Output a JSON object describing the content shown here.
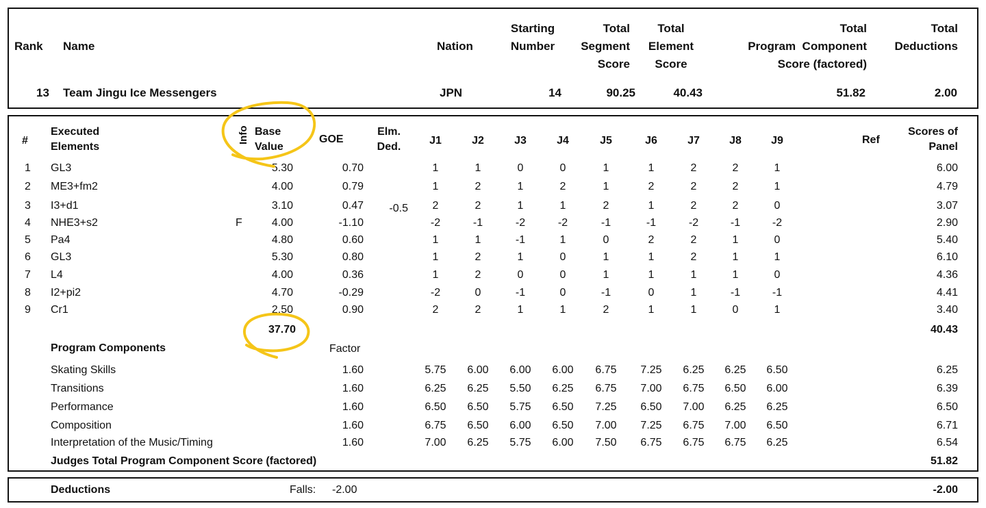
{
  "header": {
    "col_rank": "Rank",
    "col_name": "Name",
    "col_nation": "Nation",
    "col_starting_number": [
      "Starting",
      "Number"
    ],
    "col_total_segment": [
      "Total",
      "Segment",
      "Score"
    ],
    "col_total_element": [
      "Total",
      "Element",
      "Score"
    ],
    "col_total_program_component": [
      "Total",
      "Program  Component",
      "Score (factored)"
    ],
    "col_total_deductions": [
      "Total",
      "Deductions"
    ],
    "skater": {
      "rank": "13",
      "name": "Team Jingu Ice Messengers",
      "nation": "JPN",
      "starting_number": "14",
      "total_segment_score": "90.25",
      "total_element_score": "40.43",
      "total_program_component_score": "51.82",
      "total_deductions": "2.00"
    }
  },
  "elements_table": {
    "headers": {
      "num": "#",
      "executed_elements": [
        "Executed",
        "Elements"
      ],
      "info": "Info",
      "base_value": [
        "Base",
        "Value"
      ],
      "goe": "GOE",
      "elm_ded": [
        "Elm.",
        "Ded."
      ],
      "judges": [
        "J1",
        "J2",
        "J3",
        "J4",
        "J5",
        "J6",
        "J7",
        "J8",
        "J9"
      ],
      "ref": "Ref",
      "scores_of_panel": [
        "Scores of",
        "Panel"
      ]
    },
    "rows": [
      {
        "num": "1",
        "element": "GL3",
        "info": "",
        "base": "5.30",
        "goe": "0.70",
        "ded": "",
        "judges": [
          "1",
          "1",
          "0",
          "0",
          "1",
          "1",
          "2",
          "2",
          "1"
        ],
        "score": "6.00"
      },
      {
        "num": "2",
        "element": "ME3+fm2",
        "info": "",
        "base": "4.00",
        "goe": "0.79",
        "ded": "",
        "judges": [
          "1",
          "2",
          "1",
          "2",
          "1",
          "2",
          "2",
          "2",
          "1"
        ],
        "score": "4.79"
      },
      {
        "num": "3",
        "element": "I3+d1",
        "info": "",
        "base": "3.10",
        "goe": "0.47",
        "ded": "-0.5",
        "judges": [
          "2",
          "2",
          "1",
          "1",
          "2",
          "1",
          "2",
          "2",
          "0"
        ],
        "score": "3.07"
      },
      {
        "num": "4",
        "element": "NHE3+s2",
        "info": "F",
        "base": "4.00",
        "goe": "-1.10",
        "ded": "",
        "judges": [
          "-2",
          "-1",
          "-2",
          "-2",
          "-1",
          "-1",
          "-2",
          "-1",
          "-2"
        ],
        "score": "2.90"
      },
      {
        "num": "5",
        "element": "Pa4",
        "info": "",
        "base": "4.80",
        "goe": "0.60",
        "ded": "",
        "judges": [
          "1",
          "1",
          "-1",
          "1",
          "0",
          "2",
          "2",
          "1",
          "0"
        ],
        "score": "5.40"
      },
      {
        "num": "6",
        "element": "GL3",
        "info": "",
        "base": "5.30",
        "goe": "0.80",
        "ded": "",
        "judges": [
          "1",
          "2",
          "1",
          "0",
          "1",
          "1",
          "2",
          "1",
          "1"
        ],
        "score": "6.10"
      },
      {
        "num": "7",
        "element": "L4",
        "info": "",
        "base": "4.00",
        "goe": "0.36",
        "ded": "",
        "judges": [
          "1",
          "2",
          "0",
          "0",
          "1",
          "1",
          "1",
          "1",
          "0"
        ],
        "score": "4.36"
      },
      {
        "num": "8",
        "element": "I2+pi2",
        "info": "",
        "base": "4.70",
        "goe": "-0.29",
        "ded": "",
        "judges": [
          "-2",
          "0",
          "-1",
          "0",
          "-1",
          "0",
          "1",
          "-1",
          "-1"
        ],
        "score": "4.41"
      },
      {
        "num": "9",
        "element": "Cr1",
        "info": "",
        "base": "2.50",
        "goe": "0.90",
        "ded": "",
        "judges": [
          "2",
          "2",
          "1",
          "1",
          "2",
          "1",
          "1",
          "0",
          "1"
        ],
        "score": "3.40"
      }
    ],
    "base_total": "37.70",
    "elements_total": "40.43"
  },
  "program_components": {
    "title": "Program Components",
    "factor_label": "Factor",
    "rows": [
      {
        "name": "Skating Skills",
        "factor": "1.60",
        "judges": [
          "5.75",
          "6.00",
          "6.00",
          "6.00",
          "6.75",
          "7.25",
          "6.25",
          "6.25",
          "6.50"
        ],
        "score": "6.25"
      },
      {
        "name": "Transitions",
        "factor": "1.60",
        "judges": [
          "6.25",
          "6.25",
          "5.50",
          "6.25",
          "6.75",
          "7.00",
          "6.75",
          "6.50",
          "6.00"
        ],
        "score": "6.39"
      },
      {
        "name": "Performance",
        "factor": "1.60",
        "judges": [
          "6.50",
          "6.50",
          "5.75",
          "6.50",
          "7.25",
          "6.50",
          "7.00",
          "6.25",
          "6.25"
        ],
        "score": "6.50"
      },
      {
        "name": "Composition",
        "factor": "1.60",
        "judges": [
          "6.75",
          "6.50",
          "6.00",
          "6.50",
          "7.00",
          "7.25",
          "6.75",
          "7.00",
          "6.50"
        ],
        "score": "6.71"
      },
      {
        "name": "Interpretation of the Music/Timing",
        "factor": "1.60",
        "judges": [
          "7.00",
          "6.25",
          "5.75",
          "6.00",
          "7.50",
          "6.75",
          "6.75",
          "6.75",
          "6.25"
        ],
        "score": "6.54"
      }
    ],
    "total_label": "Judges Total Program Component Score (factored)",
    "total_value": "51.82"
  },
  "deductions": {
    "label": "Deductions",
    "falls_label": "Falls:",
    "falls_value": "-2.00",
    "total": "-2.00"
  },
  "annotation": {
    "color": "#f5c518"
  }
}
